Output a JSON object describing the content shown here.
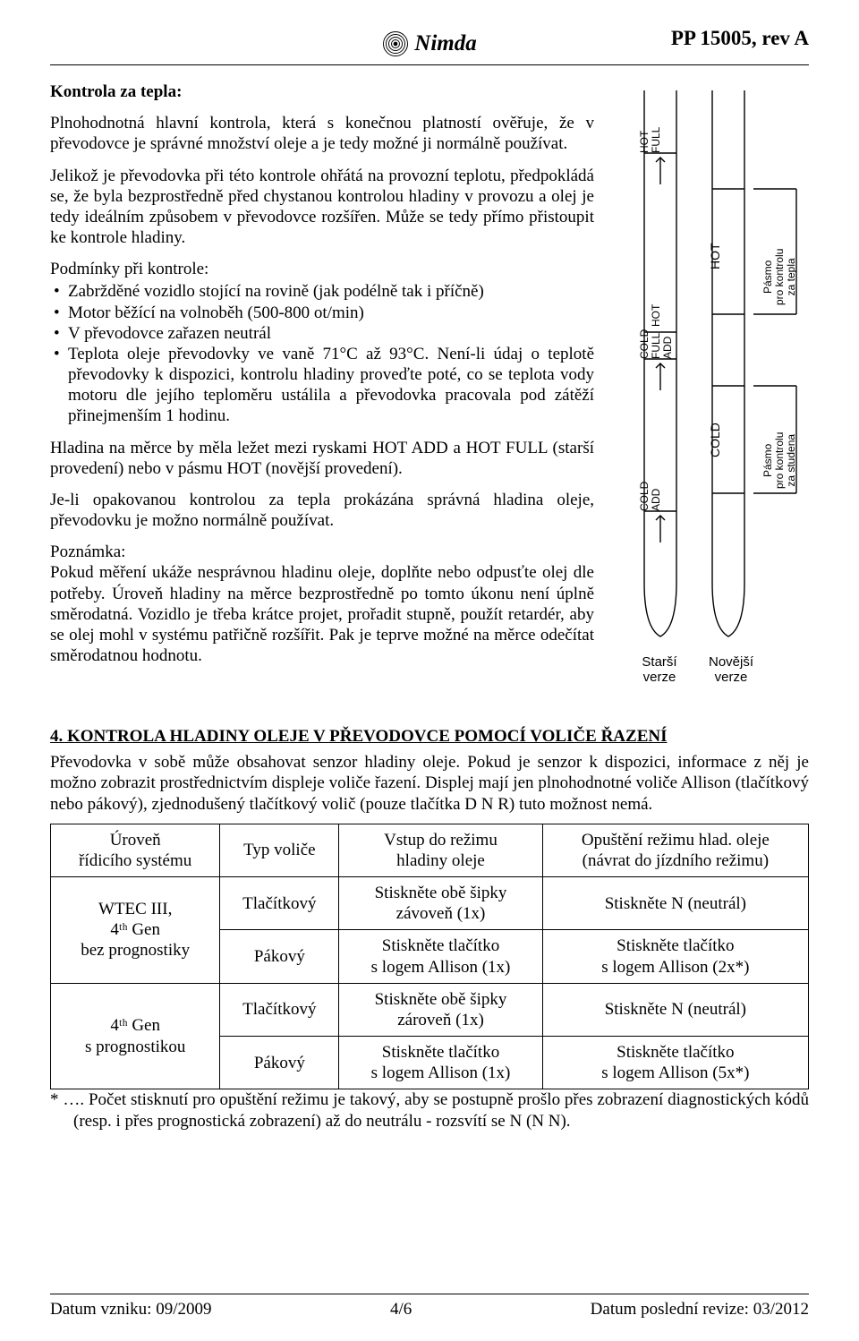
{
  "header": {
    "brand": "Nimda",
    "docnum": "PP 15005, rev A"
  },
  "body": {
    "h1": "Kontrola za tepla:",
    "p1": "Plnohodnotná hlavní kontrola, která s konečnou platností ověřuje, že v převodovce je správné množství oleje a je tedy možné ji normálně používat.",
    "p2": "Jelikož je převodovka při této kontrole ohřátá na provozní teplotu, předpokládá se, že byla bezprostředně před chystanou kontrolou hladiny v provozu a olej je tedy ideálním způsobem v převodovce rozšířen. Může se tedy přímo přistoupit ke kontrole hladiny.",
    "cond_title": "Podmínky při kontrole:",
    "cond": [
      "Zabržděné vozidlo stojící na rovině (jak podélně tak i příčně)",
      "Motor běžící na volnoběh (500-800 ot/min)",
      "V převodovce zařazen neutrál",
      "Teplota oleje převodovky ve vaně 71°C až 93°C. Není-li údaj o teplotě převodovky k dispozici, kontrolu hladiny proveďte poté, co se teplota vody motoru dle jejího teploměru ustálila a převodovka pracovala pod zátěží přinejmenším 1 hodinu."
    ],
    "p3": "Hladina na měrce by měla ležet mezi ryskami HOT ADD a HOT FULL (starší provedení) nebo v pásmu HOT (novější provedení).",
    "p4": "Je-li opakovanou kontrolou za tepla prokázána správná hladina oleje, převodovku je možno normálně používat.",
    "note_title": "Poznámka:",
    "p5": "Pokud měření ukáže nesprávnou hladinu oleje, doplňte nebo odpusťte olej dle potřeby. Úroveň hladiny na měrce bezprostředně po tomto úkonu není úplně směrodatná. Vozidlo je třeba krátce projet, prořadit stupně, použít retardér, aby se olej mohl v systému patřičně rozšířit. Pak je teprve možné na měrce odečítat směrodatnou hodnotu."
  },
  "figure": {
    "labels": {
      "hot_full": "HOT\nFULL",
      "hot": "HOT",
      "cold_full": "COLD\nFULL",
      "hot_add": "HOT\nADD",
      "cold": "COLD",
      "cold_add": "COLD\nADD",
      "band_hot_l1": "Pásmo",
      "band_hot_l2": "pro kontrolu",
      "band_hot_l3": "za tepla",
      "band_cold_l1": "Pásmo",
      "band_cold_l2": "pro kontrolu",
      "band_cold_l3": "za studena"
    },
    "caption_left": "Starší\nverze",
    "caption_right": "Novější\nverze",
    "stroke": "#000000",
    "stroke_width": 1.4
  },
  "section4": {
    "title": "4. KONTROLA HLADINY OLEJE V PŘEVODOVCE POMOCÍ VOLIČE ŘAZENÍ",
    "intro": "Převodovka v sobě může obsahovat senzor hladiny oleje. Pokud je senzor k dispozici, informace z něj je možno zobrazit prostřednictvím displeje voliče řazení. Displej mají jen plnohodnotné voliče Allison (tlačítkový nebo pákový), zjednodušený tlačítkový volič (pouze tlačítka D N R) tuto možnost nemá.",
    "table": {
      "head": [
        "Úroveň\nřídicího systému",
        "Typ voliče",
        "Vstup do režimu\nhladiny oleje",
        "Opuštění režimu hlad. oleje\n(návrat do jízdního režimu)"
      ],
      "rows": [
        {
          "sys": "WTEC III,\n4ᵗʰ Gen\nbez prognostiky",
          "type": "Tlačítkový",
          "enter": "Stiskněte obě šipky\nzávoveň (1x)",
          "exit": "Stiskněte N (neutrál)"
        },
        {
          "sys": "",
          "type": "Pákový",
          "enter": "Stiskněte tlačítko\ns logem Allison (1x)",
          "exit": "Stiskněte tlačítko\ns logem Allison (2x*)"
        },
        {
          "sys": "4ᵗʰ Gen\ns prognostikou",
          "type": "Tlačítkový",
          "enter": "Stiskněte obě šipky\nzároveň (1x)",
          "exit": "Stiskněte N (neutrál)"
        },
        {
          "sys": "",
          "type": "Pákový",
          "enter": "Stiskněte tlačítko\ns logem Allison (1x)",
          "exit": "Stiskněte tlačítko\ns logem Allison (5x*)"
        }
      ]
    },
    "footnote": "* …. Počet stisknutí pro opuštění režimu je takový, aby se postupně prošlo přes zobrazení diagnostických kódů (resp. i přes prognostická zobrazení) až do neutrálu - rozsvítí se N (N N)."
  },
  "footer": {
    "left": "Datum vzniku: 09/2009",
    "center": "4/6",
    "right": "Datum poslední revize: 03/2012"
  }
}
